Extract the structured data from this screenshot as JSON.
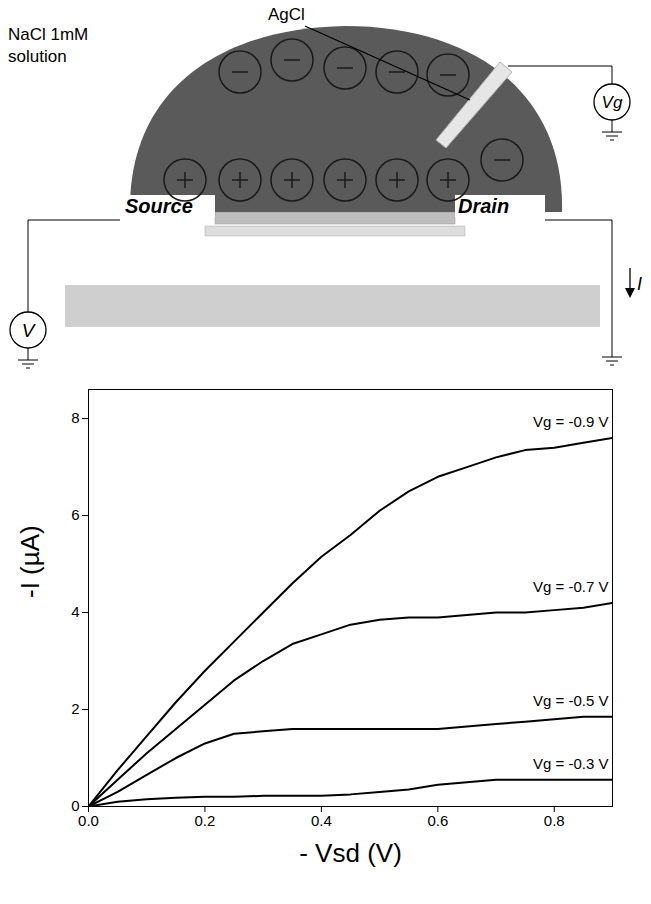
{
  "diagram": {
    "electrode": "AgCl",
    "solution": [
      "NaCl 1mM",
      "solution"
    ],
    "source": "Source",
    "drain": "Drain",
    "source_voltage": "V",
    "gate_voltage": "Vg",
    "current": "I"
  },
  "chart_data": {
    "type": "line",
    "x_label": "- Vsd (V)",
    "y_label": "-I (µA)",
    "x": [
      0,
      0.05,
      0.1,
      0.15,
      0.2,
      0.25,
      0.3,
      0.35,
      0.4,
      0.45,
      0.5,
      0.55,
      0.6,
      0.65,
      0.7,
      0.75,
      0.8,
      0.85,
      0.9
    ],
    "series": [
      {
        "name": "Vg = -0.9 V",
        "color": "#000000",
        "values": [
          0,
          0.75,
          1.45,
          2.15,
          2.8,
          3.4,
          4.0,
          4.6,
          5.15,
          5.6,
          6.1,
          6.5,
          6.8,
          7.0,
          7.2,
          7.35,
          7.4,
          7.5,
          7.6
        ]
      },
      {
        "name": "Vg = -0.7 V",
        "color": "#000000",
        "values": [
          0,
          0.55,
          1.1,
          1.6,
          2.1,
          2.6,
          3.0,
          3.35,
          3.55,
          3.75,
          3.85,
          3.9,
          3.9,
          3.95,
          4.0,
          4.0,
          4.05,
          4.1,
          4.2
        ]
      },
      {
        "name": "Vg = -0.5 V",
        "color": "#000000",
        "values": [
          0,
          0.3,
          0.65,
          1.0,
          1.3,
          1.5,
          1.55,
          1.6,
          1.6,
          1.6,
          1.6,
          1.6,
          1.6,
          1.65,
          1.7,
          1.75,
          1.8,
          1.85,
          1.85
        ]
      },
      {
        "name": "Vg = -0.3 V",
        "color": "#000000",
        "values": [
          0,
          0.1,
          0.15,
          0.18,
          0.2,
          0.2,
          0.22,
          0.22,
          0.22,
          0.25,
          0.3,
          0.35,
          0.45,
          0.5,
          0.55,
          0.55,
          0.55,
          0.55,
          0.55
        ]
      }
    ],
    "xlim": [
      0,
      0.9
    ],
    "ylim": [
      0,
      8.6
    ],
    "xticks": [
      {
        "value": 0,
        "label": "0.0"
      },
      {
        "value": 0.2,
        "label": "0.2"
      },
      {
        "value": 0.4,
        "label": "0.4"
      },
      {
        "value": 0.6,
        "label": "0.6"
      },
      {
        "value": 0.8,
        "label": "0.8"
      }
    ],
    "yticks": [
      0,
      2,
      4,
      6,
      8
    ]
  }
}
